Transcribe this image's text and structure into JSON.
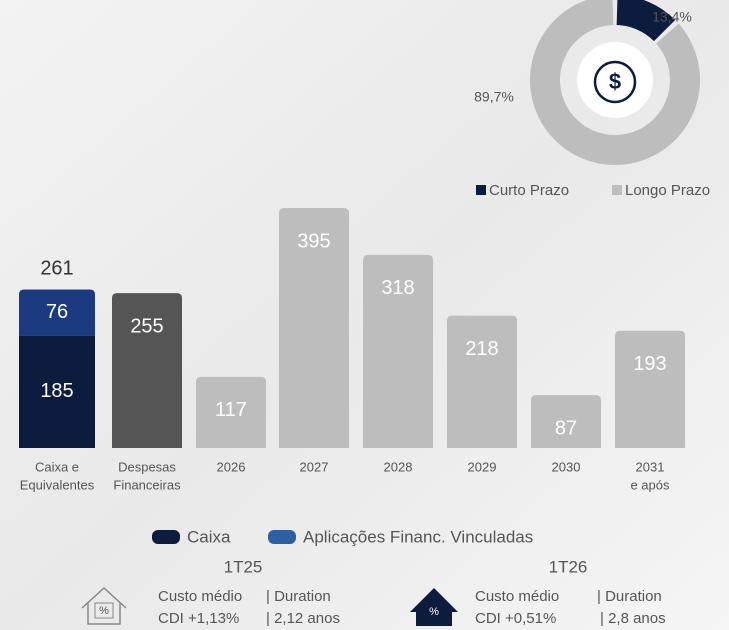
{
  "chart_data": [
    {
      "type": "donut",
      "labels": [
        "Curto Prazo",
        "Longo Prazo"
      ],
      "values": [
        13.4,
        89.7
      ],
      "value_labels": [
        "13,4%",
        "89,7%"
      ],
      "colors": [
        "#0d1b3e",
        "#bdbdbd"
      ]
    },
    {
      "type": "bar",
      "categories": [
        [
          "Caixa e",
          "Equivalentes"
        ],
        [
          "Despesas",
          "Financeiras"
        ],
        [
          "2026"
        ],
        [
          "2027"
        ],
        [
          "2028"
        ],
        [
          "2029"
        ],
        [
          "2030"
        ],
        [
          "2031",
          "e após"
        ]
      ],
      "series": [
        {
          "name": "Caixa",
          "color": "#0d1b3e",
          "values": [
            185,
            null,
            null,
            null,
            null,
            null,
            null,
            null
          ]
        },
        {
          "name": "Aplicações Financ. Vinculadas",
          "color": "#1c3a80",
          "legend_color": "#2e5fa0",
          "values": [
            76,
            null,
            null,
            null,
            null,
            null,
            null,
            null
          ]
        }
      ],
      "stack_total": 261,
      "other_values": [
        null,
        255,
        117,
        395,
        318,
        218,
        87,
        193
      ],
      "other_colors": [
        null,
        "#555555",
        "#bdbdbd",
        "#bdbdbd",
        "#bdbdbd",
        "#bdbdbd",
        "#bdbdbd",
        "#bdbdbd"
      ],
      "ylim": [
        0,
        400
      ]
    }
  ],
  "footer": [
    {
      "period": "1T25",
      "cost_label": "Custo médio",
      "cost_value": "CDI +1,13%",
      "duration_label": "| Duration",
      "duration_value": "| 2,12 anos"
    },
    {
      "period": "1T26",
      "cost_label": "Custo médio",
      "cost_value": "CDI +0,51%",
      "duration_label": "| Duration",
      "duration_value": "| 2,8 anos"
    }
  ]
}
